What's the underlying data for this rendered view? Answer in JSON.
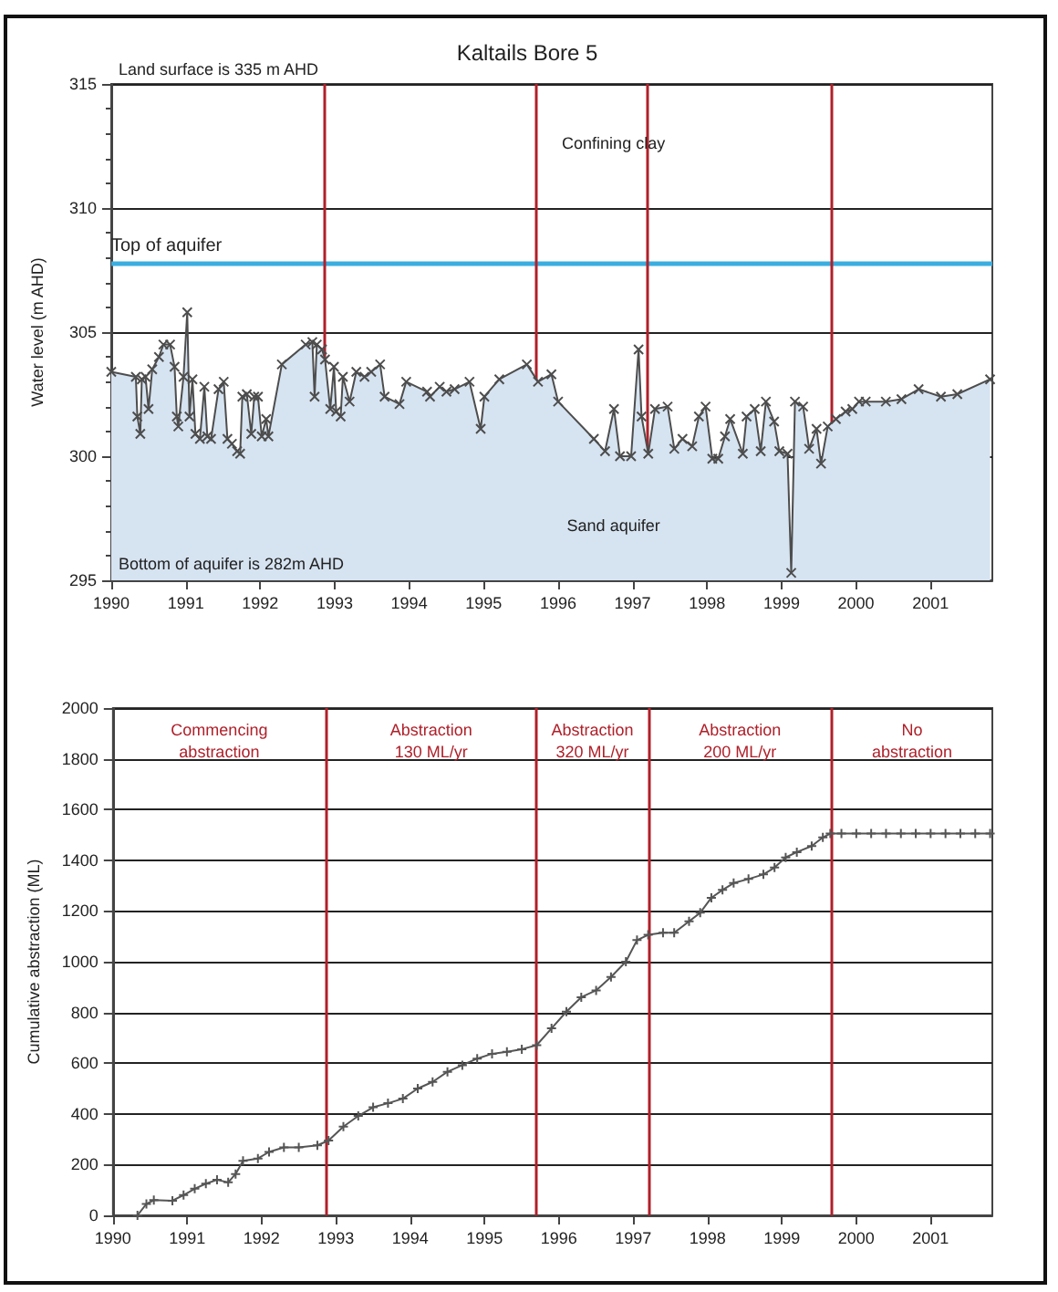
{
  "chart_data": [
    {
      "type": "area",
      "title": "Kaltails Bore 5",
      "ylabel": "Water level (m AHD)",
      "xlim": [
        1990,
        2001.83
      ],
      "xticks": [
        1990,
        1991,
        1992,
        1993,
        1994,
        1995,
        1996,
        1997,
        1998,
        1999,
        2000,
        2001
      ],
      "ylim": [
        295,
        315
      ],
      "yticks": [
        295,
        300,
        305,
        310,
        315
      ],
      "grid": "y",
      "marker": "cross",
      "line_style": "solid",
      "annotations": [
        "Land surface is 335 m AHD",
        "Confining clay",
        "Sand aquifer",
        "Bottom of aquifer is 282m AHD"
      ],
      "ref_lines": [
        {
          "axis": "y",
          "value": 307.8,
          "label": "Top of aquifer",
          "color": "#3aaee0"
        },
        {
          "axis": "x",
          "value": 1992.86,
          "color": "#b0202a"
        },
        {
          "axis": "x",
          "value": 1995.7,
          "color": "#b0202a"
        },
        {
          "axis": "x",
          "value": 1997.2,
          "color": "#b0202a"
        },
        {
          "axis": "x",
          "value": 1999.67,
          "color": "#b0202a"
        }
      ],
      "series": [
        {
          "color": "#4d4d4d",
          "x": [
            1990.0,
            1990.33,
            1990.35,
            1990.39,
            1990.41,
            1990.46,
            1990.5,
            1990.55,
            1990.64,
            1990.7,
            1990.79,
            1990.85,
            1990.88,
            1990.9,
            1990.97,
            1991.02,
            1991.05,
            1991.09,
            1991.13,
            1991.19,
            1991.25,
            1991.29,
            1991.34,
            1991.44,
            1991.51,
            1991.56,
            1991.62,
            1991.69,
            1991.73,
            1991.76,
            1991.82,
            1991.88,
            1991.92,
            1991.97,
            1992.02,
            1992.08,
            1992.11,
            1992.29,
            1992.61,
            1992.7,
            1992.73,
            1992.76,
            1992.83,
            1992.87,
            1992.94,
            1992.99,
            1993.02,
            1993.08,
            1993.11,
            1993.2,
            1993.29,
            1993.4,
            1993.49,
            1993.61,
            1993.67,
            1993.87,
            1993.96,
            1994.24,
            1994.28,
            1994.41,
            1994.5,
            1994.61,
            1994.81,
            1994.96,
            1995.01,
            1995.21,
            1995.58,
            1995.73,
            1995.91,
            1996.0,
            1996.48,
            1996.63,
            1996.75,
            1996.83,
            1996.98,
            1997.08,
            1997.12,
            1997.21,
            1997.3,
            1997.47,
            1997.56,
            1997.67,
            1997.8,
            1997.89,
            1997.98,
            1998.07,
            1998.15,
            1998.24,
            1998.31,
            1998.48,
            1998.53,
            1998.64,
            1998.72,
            1998.79,
            1998.9,
            1998.97,
            1999.08,
            1999.13,
            1999.18,
            1999.29,
            1999.37,
            1999.47,
            1999.53,
            1999.62,
            1999.73,
            1999.86,
            1999.95,
            2000.04,
            2000.13,
            2000.4,
            2000.61,
            2000.84,
            2001.14,
            2001.36,
            2001.8
          ],
          "values": [
            303.4,
            303.2,
            301.6,
            300.9,
            303.1,
            303.2,
            301.9,
            303.5,
            304.0,
            304.5,
            304.5,
            303.6,
            301.6,
            301.2,
            303.2,
            305.8,
            301.6,
            303.1,
            300.9,
            300.7,
            302.8,
            300.8,
            300.7,
            302.7,
            303.0,
            300.7,
            300.5,
            300.2,
            300.1,
            302.4,
            302.5,
            300.9,
            302.4,
            302.4,
            300.8,
            301.5,
            300.8,
            303.7,
            304.5,
            304.6,
            302.4,
            304.5,
            304.3,
            303.9,
            301.9,
            303.6,
            301.8,
            301.6,
            303.2,
            302.2,
            303.4,
            303.2,
            303.4,
            303.7,
            302.4,
            302.1,
            303.0,
            302.6,
            302.4,
            302.8,
            302.6,
            302.7,
            303.0,
            301.1,
            302.4,
            303.1,
            303.7,
            303.0,
            303.3,
            302.2,
            300.7,
            300.2,
            301.9,
            300.0,
            300.0,
            304.3,
            301.6,
            300.1,
            301.9,
            302.0,
            300.3,
            300.7,
            300.4,
            301.6,
            302.0,
            299.9,
            299.9,
            300.8,
            301.5,
            300.1,
            301.6,
            301.9,
            300.2,
            302.2,
            301.4,
            300.2,
            300.1,
            295.3,
            302.2,
            302.0,
            300.3,
            301.1,
            299.7,
            301.2,
            301.5,
            301.8,
            301.9,
            302.2,
            302.2,
            302.2,
            302.3,
            302.7,
            302.4,
            302.5,
            303.1
          ]
        }
      ]
    },
    {
      "type": "line",
      "ylabel": "Cumulative abstraction (ML)",
      "xlim": [
        1990,
        2001.83
      ],
      "xticks": [
        1990,
        1991,
        1992,
        1993,
        1994,
        1995,
        1996,
        1997,
        1998,
        1999,
        2000,
        2001
      ],
      "ylim": [
        0,
        2000
      ],
      "yticks": [
        0,
        200,
        400,
        600,
        800,
        1000,
        1200,
        1400,
        1600,
        1800,
        2000
      ],
      "grid": "y",
      "marker": "cross",
      "line_style": "solid",
      "annotations": [
        "Commencing\nabstraction",
        "Abstraction\n130 ML/yr",
        "Abstraction\n320 ML/yr",
        "Abstraction\n200 ML/yr",
        "No\nabstraction"
      ],
      "ref_lines": [
        {
          "axis": "x",
          "value": 1992.86,
          "color": "#b0202a"
        },
        {
          "axis": "x",
          "value": 1995.7,
          "color": "#b0202a"
        },
        {
          "axis": "x",
          "value": 1997.2,
          "color": "#b0202a"
        },
        {
          "axis": "x",
          "value": 1999.67,
          "color": "#b0202a"
        }
      ],
      "series": [
        {
          "color": "#555555",
          "x": [
            1990.33,
            1990.45,
            1990.55,
            1990.8,
            1990.95,
            1991.1,
            1991.25,
            1991.4,
            1991.55,
            1991.65,
            1991.75,
            1991.95,
            1992.1,
            1992.3,
            1992.5,
            1992.75,
            1992.9,
            1993.1,
            1993.3,
            1993.5,
            1993.7,
            1993.9,
            1994.1,
            1994.3,
            1994.5,
            1994.7,
            1994.9,
            1995.1,
            1995.3,
            1995.5,
            1995.7,
            1995.9,
            1996.1,
            1996.3,
            1996.5,
            1996.7,
            1996.9,
            1997.05,
            1997.2,
            1997.4,
            1997.55,
            1997.75,
            1997.9,
            1998.05,
            1998.2,
            1998.35,
            1998.55,
            1998.75,
            1998.9,
            1999.05,
            1999.2,
            1999.4,
            1999.55,
            1999.65,
            1999.8,
            2000.0,
            2000.2,
            2000.4,
            2000.6,
            2000.8,
            2001.0,
            2001.2,
            2001.4,
            2001.6,
            2001.8
          ],
          "values": [
            0,
            45,
            60,
            58,
            80,
            105,
            125,
            140,
            130,
            163,
            215,
            224,
            250,
            268,
            268,
            276,
            295,
            350,
            392,
            426,
            442,
            460,
            500,
            526,
            566,
            592,
            618,
            637,
            645,
            655,
            671,
            737,
            803,
            860,
            887,
            940,
            1000,
            1085,
            1106,
            1114,
            1114,
            1159,
            1193,
            1252,
            1283,
            1310,
            1326,
            1344,
            1371,
            1411,
            1432,
            1456,
            1490,
            1505,
            1505,
            1505,
            1505,
            1505,
            1505,
            1505,
            1505,
            1505,
            1505,
            1505,
            1505
          ]
        }
      ]
    }
  ]
}
